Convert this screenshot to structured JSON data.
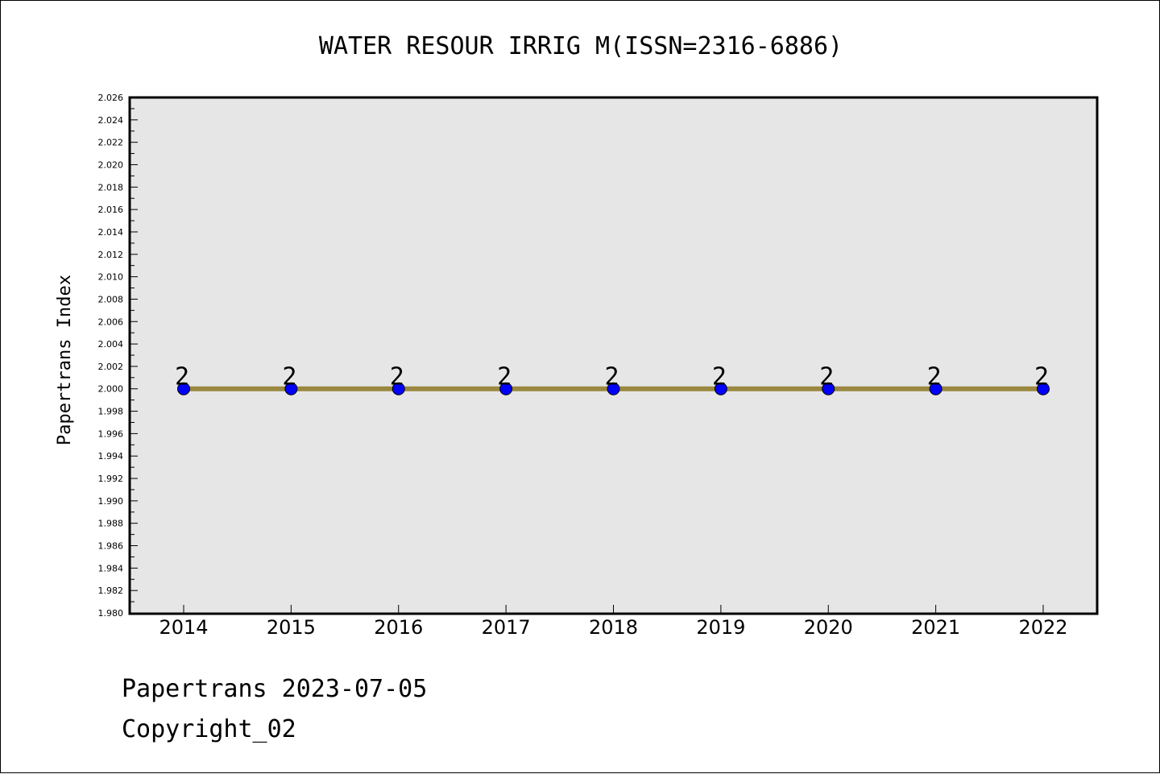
{
  "chart_data": {
    "type": "line",
    "title": "WATER RESOUR IRRIG M(ISSN=2316-6886)",
    "xlabel": "",
    "ylabel": "Papertrans Index",
    "x": [
      "2014",
      "2015",
      "2016",
      "2017",
      "2018",
      "2019",
      "2020",
      "2021",
      "2022"
    ],
    "series": [
      {
        "values": [
          2,
          2,
          2,
          2,
          2,
          2,
          2,
          2,
          2
        ]
      }
    ],
    "data_labels": [
      "2",
      "2",
      "2",
      "2",
      "2",
      "2",
      "2",
      "2",
      "2"
    ],
    "ylim": [
      1.98,
      2.026
    ],
    "y_ticks": [
      "1.980",
      "1.982",
      "1.984",
      "1.986",
      "1.988",
      "1.990",
      "1.992",
      "1.994",
      "1.996",
      "1.998",
      "2.000",
      "2.002",
      "2.004",
      "2.006",
      "2.008",
      "2.010",
      "2.012",
      "2.014",
      "2.016",
      "2.018",
      "2.020",
      "2.022",
      "2.024",
      "2.026"
    ],
    "grid": false,
    "legend": "none",
    "colors": {
      "line": "#9a8840",
      "marker": "#0000ff",
      "plot_background": "#e6e6e6",
      "axis": "#000000"
    }
  },
  "footer": {
    "line1": "Papertrans 2023-07-05",
    "line2": "Copyright_02"
  }
}
